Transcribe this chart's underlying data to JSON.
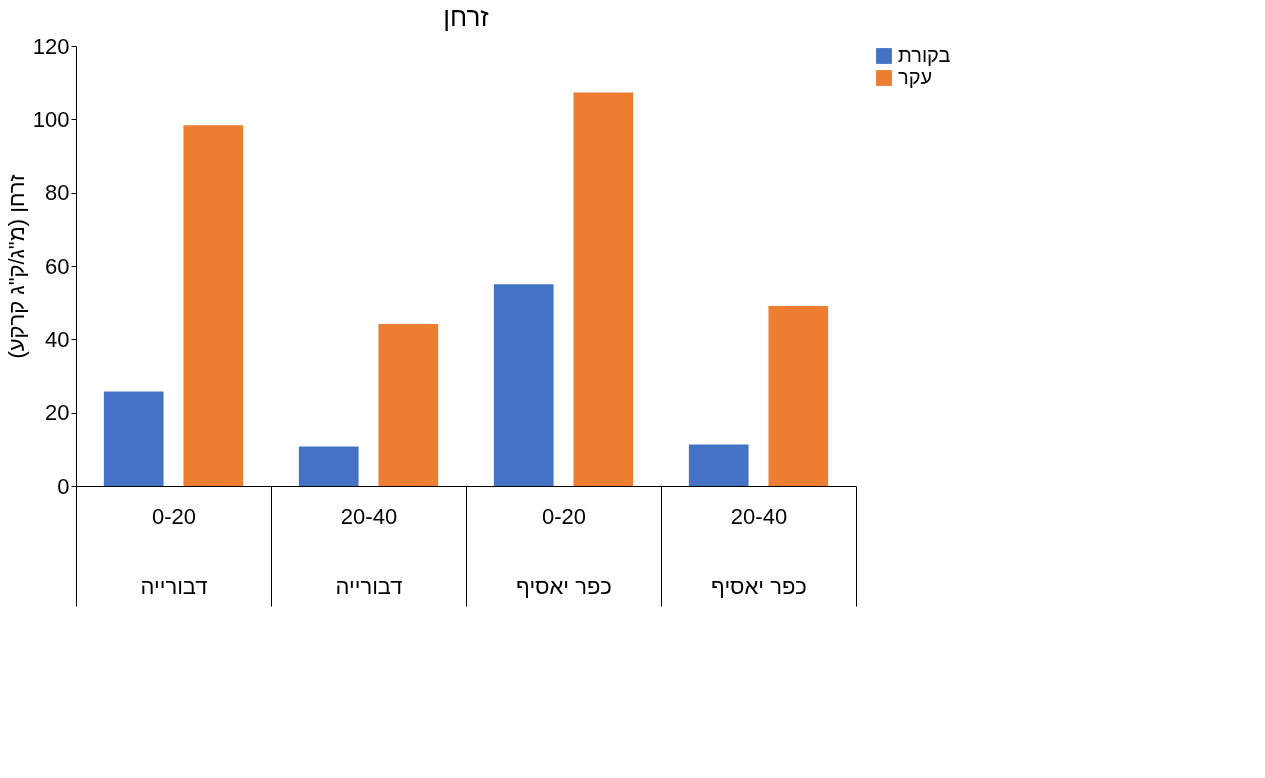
{
  "chart_data": {
    "type": "bar",
    "title": "זרחן",
    "ylabel": "זרחן (מ\"ג/ק\"ג קרקע)",
    "categories": [
      "0-20\nדבורייה",
      "20-40\nדבורייה",
      "0-20\nכפר יאסיף",
      "20-40\nכפר יאסיף"
    ],
    "series": [
      {
        "name": "בקורת",
        "color": "#4472c4",
        "values": [
          25.8,
          10.8,
          55.0,
          11.3
        ]
      },
      {
        "name": "עקר",
        "color": "#ed7d31",
        "values": [
          98.4,
          44.2,
          107.3,
          49.1
        ]
      }
    ],
    "ylim": [
      0,
      120
    ],
    "yticks": [
      0,
      20,
      40,
      60,
      80,
      100,
      120
    ],
    "grid": false,
    "legend": "right"
  }
}
